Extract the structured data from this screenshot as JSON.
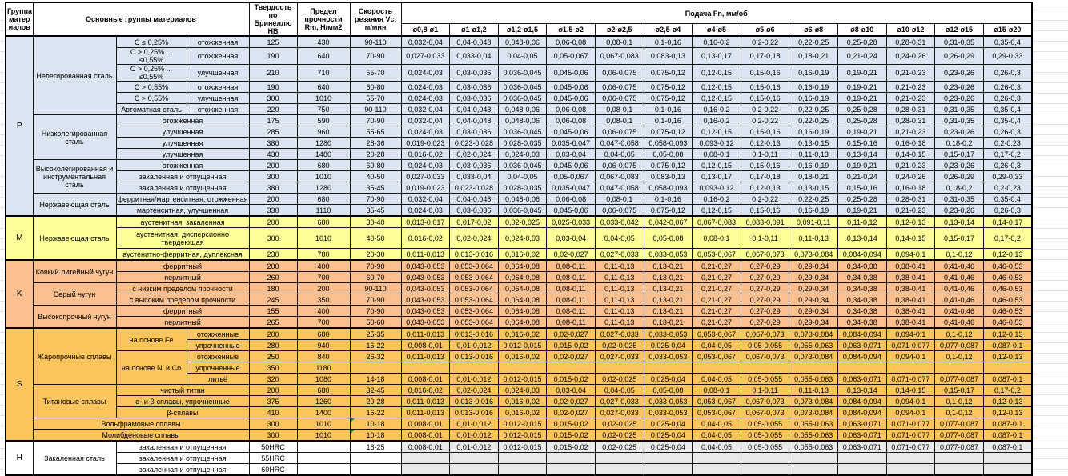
{
  "header": {
    "group_col": "Группа матер иалов",
    "materials_col": "Основные группы материалов",
    "hb_col": "Твердость по Бринеллю HB",
    "rm_col": "Предел прочности Rm, Н/мм2",
    "vc_col": "Скорость резания Vc, м/мин",
    "feed_title": "Подача Fn, мм/об",
    "feed_cols": [
      "ø0,8-ø1",
      "ø1-ø1,2",
      "ø1,2-ø1,5",
      "ø1,5-ø2",
      "ø2-ø2,5",
      "ø2,5-ø4",
      "ø4-ø5",
      "ø5-ø6",
      "ø6-ø8",
      "ø8-ø10",
      "ø10-ø12",
      "ø12-ø15",
      "ø15-ø20"
    ]
  },
  "colors": {
    "group_p": "#dbe5f1",
    "group_m": "#ffff99",
    "group_k": "#f9bf8f",
    "group_s": "#fcc45c",
    "group_h": "#ffffff",
    "group_h_feed": "#e9e9e9",
    "comment_marker": "#1e8e3e",
    "border": "#141414"
  },
  "feed_patterns": {
    "A": [
      "0,032-0,04",
      "0,04-0,048",
      "0,048-0,06",
      "0,06-0,08",
      "0,08-0,1",
      "0,1-0,16",
      "0,16-0,2",
      "0,2-0,22",
      "0,22-0,25",
      "0,25-0,28",
      "0,28-0,31",
      "0,31-0,35",
      "0,35-0,4"
    ],
    "B": [
      "0,027-0,033",
      "0,033-0,04",
      "0,04-0,05",
      "0,05-0,067",
      "0,067-0,083",
      "0,083-0,13",
      "0,13-0,17",
      "0,17-0,18",
      "0,18-0,21",
      "0,21-0,24",
      "0,24-0,26",
      "0,26-0,29",
      "0,29-0,33"
    ],
    "C": [
      "0,024-0,03",
      "0,03-0,036",
      "0,036-0,045",
      "0,045-0,06",
      "0,06-0,075",
      "0,075-0,12",
      "0,12-0,15",
      "0,15-0,16",
      "0,16-0,19",
      "0,19-0,21",
      "0,21-0,23",
      "0,23-0,26",
      "0,26-0,3"
    ],
    "D": [
      "0,019-0,023",
      "0,023-0,028",
      "0,028-0,035",
      "0,035-0,047",
      "0,047-0,058",
      "0,058-0,093",
      "0,093-0,12",
      "0,12-0,13",
      "0,13-0,15",
      "0,15-0,16",
      "0,16-0,18",
      "0,18-0,2",
      "0,2-0,23"
    ],
    "E": [
      "0,016-0,02",
      "0,02-0,024",
      "0,024-0,03",
      "0,03-0,04",
      "0,04-0,05",
      "0,05-0,08",
      "0,08-0,1",
      "0,1-0,11",
      "0,11-0,13",
      "0,13-0,14",
      "0,14-0,15",
      "0,15-0,17",
      "0,17-0,2"
    ],
    "F": [
      "0,013-0,017",
      "0,017-0,02",
      "0,02-0,025",
      "0,025-0,033",
      "0,033-0,042",
      "0,042-0,067",
      "0,067-0,083",
      "0,083-0,091",
      "0,091-0,11",
      "0,11-0,12",
      "0,12-0,13",
      "0,13-0,14",
      "0,14-0,17"
    ],
    "G": [
      "0,011-0,013",
      "0,013-0,016",
      "0,016-0,02",
      "0,02-0,027",
      "0,027-0,033",
      "0,033-0,053",
      "0,053-0,067",
      "0,067-0,073",
      "0,073-0,084",
      "0,084-0,094",
      "0,094-0,1",
      "0,1-0,12",
      "0,12-0,13"
    ],
    "H": [
      "0,043-0,053",
      "0,053-0,064",
      "0,064-0,08",
      "0,08-0,11",
      "0,11-0,13",
      "0,13-0,21",
      "0,21-0,27",
      "0,27-0,29",
      "0,29-0,34",
      "0,34-0,38",
      "0,38-0,41",
      "0,41-0,46",
      "0,46-0,53"
    ],
    "I": [
      "0,008-0,01",
      "0,01-0,012",
      "0,012-0,015",
      "0,015-0,02",
      "0,02-0,025",
      "0,025-0,04",
      "0,04-0,05",
      "0,05-0,055",
      "0,055-0,063",
      "0,063-0,071",
      "0,071-0,077",
      "0,077-0,087",
      "0,087-0,1"
    ],
    "empty": [
      "",
      "",
      "",
      "",
      "",
      "",
      "",
      "",
      "",
      "",
      "",
      "",
      ""
    ]
  },
  "groups": [
    {
      "key": "p",
      "letter": "P",
      "rows": [
        {
          "cells": [
            {
              "t": "Нелегированная сталь",
              "rs": 6
            },
            {
              "t": "C ≤ 0,25%"
            },
            {
              "t": "отожженная"
            }
          ],
          "hb": "125",
          "rm": "430",
          "vc": "90-110",
          "feed": "A"
        },
        {
          "cells": [
            {
              "t": "C > 0,25% ... ≤0,55%"
            },
            {
              "t": "отожженная"
            }
          ],
          "hb": "190",
          "rm": "640",
          "vc": "70-90",
          "feed": "B"
        },
        {
          "cells": [
            {
              "t": "C > 0,25% ... ≤0,55%"
            },
            {
              "t": "улучшенная"
            }
          ],
          "hb": "210",
          "rm": "710",
          "vc": "55-70",
          "feed": "C"
        },
        {
          "cells": [
            {
              "t": "C > 0,55%"
            },
            {
              "t": "отожженная"
            }
          ],
          "hb": "190",
          "rm": "640",
          "vc": "60-80",
          "feed": "C"
        },
        {
          "cells": [
            {
              "t": "C > 0,55%"
            },
            {
              "t": "улучшенная"
            }
          ],
          "hb": "300",
          "rm": "1010",
          "vc": "55-70",
          "feed": "C"
        },
        {
          "cells": [
            {
              "t": "Автоматная сталь"
            },
            {
              "t": "отожженная"
            }
          ],
          "hb": "220",
          "rm": "750",
          "vc": "90-110",
          "feed": "A"
        },
        {
          "cells": [
            {
              "t": "Низколегированная сталь",
              "rs": 4
            },
            {
              "t": "отожженная",
              "cs": 2
            }
          ],
          "hb": "175",
          "rm": "590",
          "vc": "70-90",
          "feed": "A"
        },
        {
          "cells": [
            {
              "t": "улучшенная",
              "cs": 2
            }
          ],
          "hb": "285",
          "rm": "960",
          "vc": "55-65",
          "feed": "C"
        },
        {
          "cells": [
            {
              "t": "улучшенная",
              "cs": 2
            }
          ],
          "hb": "380",
          "rm": "1280",
          "vc": "28-36",
          "feed": "D"
        },
        {
          "cells": [
            {
              "t": "улучшенная",
              "cs": 2
            }
          ],
          "hb": "430",
          "rm": "1480",
          "vc": "20-28",
          "feed": "E"
        },
        {
          "cells": [
            {
              "t": "Высоколегированная и инструментальная сталь",
              "rs": 3
            },
            {
              "t": "отожженная",
              "cs": 2
            }
          ],
          "hb": "200",
          "rm": "680",
          "vc": "60-80",
          "feed": "C"
        },
        {
          "cells": [
            {
              "t": "закаленная и отпущенная",
              "cs": 2
            }
          ],
          "hb": "300",
          "rm": "1010",
          "vc": "40-50",
          "feed": "B"
        },
        {
          "cells": [
            {
              "t": "закаленная и отпущенная",
              "cs": 2
            }
          ],
          "hb": "380",
          "rm": "1280",
          "vc": "35-45",
          "feed": "D"
        },
        {
          "cells": [
            {
              "t": "Нержавеющая сталь",
              "rs": 2
            },
            {
              "t": "ферритная/мартенситная, отожженная",
              "cs": 2
            }
          ],
          "hb": "200",
          "rm": "680",
          "vc": "70-90",
          "feed": "A"
        },
        {
          "cells": [
            {
              "t": "мартенситная, улучшенная",
              "cs": 2
            }
          ],
          "hb": "330",
          "rm": "1110",
          "vc": "35-45",
          "feed": "C"
        }
      ]
    },
    {
      "key": "m",
      "letter": "M",
      "rows": [
        {
          "cells": [
            {
              "t": "Нержавеющая сталь",
              "rs": 3
            },
            {
              "t": "аустенитная, закаленная",
              "cs": 2
            }
          ],
          "hb": "200",
          "rm": "680",
          "vc": "30-40",
          "feed": "F"
        },
        {
          "cells": [
            {
              "t": "аустенитная, дисперсионно твердеющая",
              "cs": 2
            }
          ],
          "hb": "300",
          "rm": "1010",
          "vc": "40-50",
          "feed": "E",
          "tall": true
        },
        {
          "cells": [
            {
              "t": "аустенитно-ферритная, дуплексная",
              "cs": 2
            }
          ],
          "hb": "230",
          "rm": "780",
          "vc": "20-30",
          "feed": "G"
        }
      ]
    },
    {
      "key": "k",
      "letter": "K",
      "rows": [
        {
          "cells": [
            {
              "t": "Ковкий литейный чугун",
              "rs": 2
            },
            {
              "t": "ферритный",
              "cs": 2
            }
          ],
          "hb": "200",
          "rm": "400",
          "vc": "70-90",
          "feed": "H"
        },
        {
          "cells": [
            {
              "t": "перлитный",
              "cs": 2
            }
          ],
          "hb": "260",
          "rm": "700",
          "vc": "60-70",
          "feed": "H"
        },
        {
          "cells": [
            {
              "t": "Серый чугун",
              "rs": 2
            },
            {
              "t": "с низким пределом прочности",
              "cs": 2
            }
          ],
          "hb": "180",
          "rm": "200",
          "vc": "90-110",
          "feed": "H"
        },
        {
          "cells": [
            {
              "t": "с высоким пределом прочности",
              "cs": 2
            }
          ],
          "hb": "245",
          "rm": "350",
          "vc": "70-90",
          "feed": "H"
        },
        {
          "cells": [
            {
              "t": "Высокопрочный чугун",
              "rs": 2
            },
            {
              "t": "ферритный",
              "cs": 2
            }
          ],
          "hb": "155",
          "rm": "400",
          "vc": "70-90",
          "feed": "H"
        },
        {
          "cells": [
            {
              "t": "перлитный",
              "cs": 2
            }
          ],
          "hb": "265",
          "rm": "700",
          "vc": "50-60",
          "feed": "H"
        }
      ]
    },
    {
      "key": "s",
      "letter": "S",
      "rows": [
        {
          "cells": [
            {
              "t": "Жаропрочные сплавы",
              "rs": 5
            },
            {
              "t": "на основе Fe",
              "rs": 2
            },
            {
              "t": "отожженные"
            }
          ],
          "hb": "200",
          "rm": "680",
          "vc": "25-35",
          "feed": "G"
        },
        {
          "cells": [
            {
              "t": "упрочненные"
            }
          ],
          "hb": "280",
          "rm": "940",
          "vc": "16-22",
          "feed": "I"
        },
        {
          "cells": [
            {
              "t": "на основе Ni и Co",
              "rs": 3
            },
            {
              "t": "отожженные"
            }
          ],
          "hb": "250",
          "rm": "840",
          "vc": "26-32",
          "feed": "G"
        },
        {
          "cells": [
            {
              "t": "упрочненные"
            }
          ],
          "hb": "350",
          "rm": "1180",
          "vc": "",
          "feed": "empty"
        },
        {
          "cells": [
            {
              "t": "литьё"
            }
          ],
          "hb": "320",
          "rm": "1080",
          "vc": "14-18",
          "feed": "I"
        },
        {
          "cells": [
            {
              "t": "Титановые сплавы",
              "rs": 3
            },
            {
              "t": "чистый титан",
              "cs": 2
            }
          ],
          "hb": "200",
          "rm": "680",
          "vc": "32-45",
          "feed": "E"
        },
        {
          "cells": [
            {
              "t": "α- и β-сплавы, упрочненные",
              "cs": 2
            }
          ],
          "hb": "375",
          "rm": "1260",
          "vc": "20-28",
          "feed": "G"
        },
        {
          "cells": [
            {
              "t": "β-сплавы",
              "cs": 2
            }
          ],
          "hb": "410",
          "rm": "1400",
          "vc": "16-22",
          "feed": "G"
        },
        {
          "cells": [
            {
              "t": "Вольфрамовые сплавы",
              "cs": 3
            }
          ],
          "hb": "300",
          "rm": "1010",
          "vc": "10-18",
          "feed": "I",
          "marker": true
        },
        {
          "cells": [
            {
              "t": "Молибденовые сплавы",
              "cs": 3
            }
          ],
          "hb": "300",
          "rm": "1010",
          "vc": "10-18",
          "feed": "I",
          "marker": true
        }
      ]
    },
    {
      "key": "h",
      "letter": "H",
      "rows": [
        {
          "cells": [
            {
              "t": "Закаленная сталь",
              "rs": 3
            },
            {
              "t": "закаленная и отпущенная",
              "cs": 2
            }
          ],
          "hb": "50HRC",
          "rm": "",
          "vc": "18-25",
          "feed": "I"
        },
        {
          "cells": [
            {
              "t": "закаленная и отпущенная",
              "cs": 2
            }
          ],
          "hb": "55HRC",
          "rm": "",
          "vc": "",
          "feed": "empty"
        },
        {
          "cells": [
            {
              "t": "закаленная и отпущенная",
              "cs": 2
            }
          ],
          "hb": "60HRC",
          "rm": "",
          "vc": "",
          "feed": "empty"
        }
      ]
    }
  ]
}
